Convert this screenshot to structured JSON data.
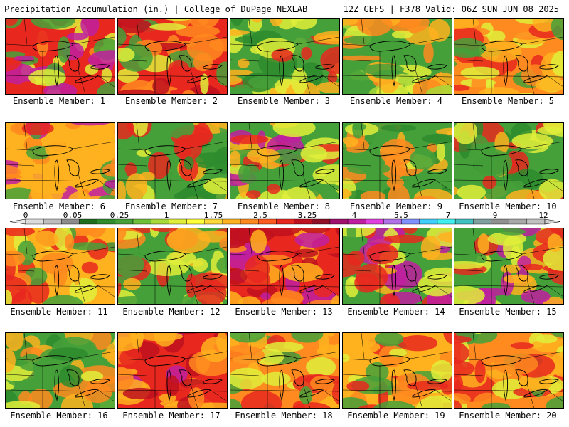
{
  "header": {
    "title_left": "Precipitation Accumulation (in.) | College of DuPage NEXLAB",
    "title_right": "12Z GEFS | F378 Valid: 06Z SUN JUN 08 2025"
  },
  "colorbar": {
    "labels": [
      "0",
      "0.05",
      "0.25",
      "1",
      "1.75",
      "2.5",
      "3.25",
      "4",
      "5.5",
      "7",
      "9",
      "12"
    ],
    "colors": [
      "#dcdcdc",
      "#bebebe",
      "#8c8c8c",
      "#1f6e1f",
      "#2e8b2e",
      "#45a03a",
      "#6fbf3a",
      "#a8d83a",
      "#e0ee3a",
      "#ffff3a",
      "#ffd83a",
      "#ffb21f",
      "#ff8a1f",
      "#ff5a1f",
      "#e8281f",
      "#c0101f",
      "#901028",
      "#a0106e",
      "#c01ea0",
      "#e040e0",
      "#b070e8",
      "#8090ff",
      "#40d0ff",
      "#40f0f0",
      "#40c0c0",
      "#80a0a0",
      "#909090",
      "#a8a8a8",
      "#c0c0c0"
    ]
  },
  "panels": [
    {
      "caption": "Ensemble Member: 1",
      "palette": [
        "#e8281f",
        "#ff8a1f",
        "#e0ee3a",
        "#45a03a",
        "#c01ea0"
      ]
    },
    {
      "caption": "Ensemble Member: 2",
      "palette": [
        "#e8281f",
        "#c0101f",
        "#ff8a1f",
        "#e0ee3a",
        "#45a03a"
      ]
    },
    {
      "caption": "Ensemble Member: 3",
      "palette": [
        "#45a03a",
        "#2e8b2e",
        "#e0ee3a",
        "#ffb21f",
        "#e8281f"
      ]
    },
    {
      "caption": "Ensemble Member: 4",
      "palette": [
        "#45a03a",
        "#a8d83a",
        "#e0ee3a",
        "#ffb21f",
        "#ff8a1f"
      ]
    },
    {
      "caption": "Ensemble Member: 5",
      "palette": [
        "#ff8a1f",
        "#e8281f",
        "#ffb21f",
        "#45a03a",
        "#e0ee3a"
      ]
    },
    {
      "caption": "Ensemble Member: 6",
      "palette": [
        "#ffb21f",
        "#ff8a1f",
        "#e8281f",
        "#45a03a",
        "#c01ea0"
      ]
    },
    {
      "caption": "Ensemble Member: 7",
      "palette": [
        "#45a03a",
        "#e0ee3a",
        "#ffb21f",
        "#e8281f",
        "#2e8b2e"
      ]
    },
    {
      "caption": "Ensemble Member: 8",
      "palette": [
        "#45a03a",
        "#e0ee3a",
        "#ffb21f",
        "#e8281f",
        "#c01ea0"
      ]
    },
    {
      "caption": "Ensemble Member: 9",
      "palette": [
        "#45a03a",
        "#e0ee3a",
        "#ffb21f",
        "#ff8a1f",
        "#2e8b2e"
      ]
    },
    {
      "caption": "Ensemble Member: 10",
      "palette": [
        "#45a03a",
        "#2e8b2e",
        "#e0ee3a",
        "#ffb21f",
        "#e8281f"
      ]
    },
    {
      "caption": "Ensemble Member: 11",
      "palette": [
        "#ffb21f",
        "#ff8a1f",
        "#e8281f",
        "#45a03a",
        "#e0ee3a"
      ]
    },
    {
      "caption": "Ensemble Member: 12",
      "palette": [
        "#45a03a",
        "#e0ee3a",
        "#ffb21f",
        "#ff8a1f",
        "#e8281f"
      ]
    },
    {
      "caption": "Ensemble Member: 13",
      "palette": [
        "#e8281f",
        "#c0101f",
        "#ff8a1f",
        "#ffb21f",
        "#c01ea0"
      ]
    },
    {
      "caption": "Ensemble Member: 14",
      "palette": [
        "#45a03a",
        "#e0ee3a",
        "#ffb21f",
        "#e8281f",
        "#c01ea0"
      ]
    },
    {
      "caption": "Ensemble Member: 15",
      "palette": [
        "#45a03a",
        "#e0ee3a",
        "#ffb21f",
        "#e8281f",
        "#c01ea0"
      ]
    },
    {
      "caption": "Ensemble Member: 16",
      "palette": [
        "#45a03a",
        "#2e8b2e",
        "#e0ee3a",
        "#ffb21f",
        "#ff8a1f"
      ]
    },
    {
      "caption": "Ensemble Member: 17",
      "palette": [
        "#e8281f",
        "#c0101f",
        "#ff8a1f",
        "#ffb21f",
        "#c01ea0"
      ]
    },
    {
      "caption": "Ensemble Member: 18",
      "palette": [
        "#ff8a1f",
        "#e8281f",
        "#ffb21f",
        "#45a03a",
        "#e0ee3a"
      ]
    },
    {
      "caption": "Ensemble Member: 19",
      "palette": [
        "#ffb21f",
        "#ff8a1f",
        "#e0ee3a",
        "#e8281f",
        "#45a03a"
      ]
    },
    {
      "caption": "Ensemble Member: 20",
      "palette": [
        "#ff8a1f",
        "#e8281f",
        "#ffb21f",
        "#e0ee3a",
        "#45a03a"
      ]
    }
  ]
}
